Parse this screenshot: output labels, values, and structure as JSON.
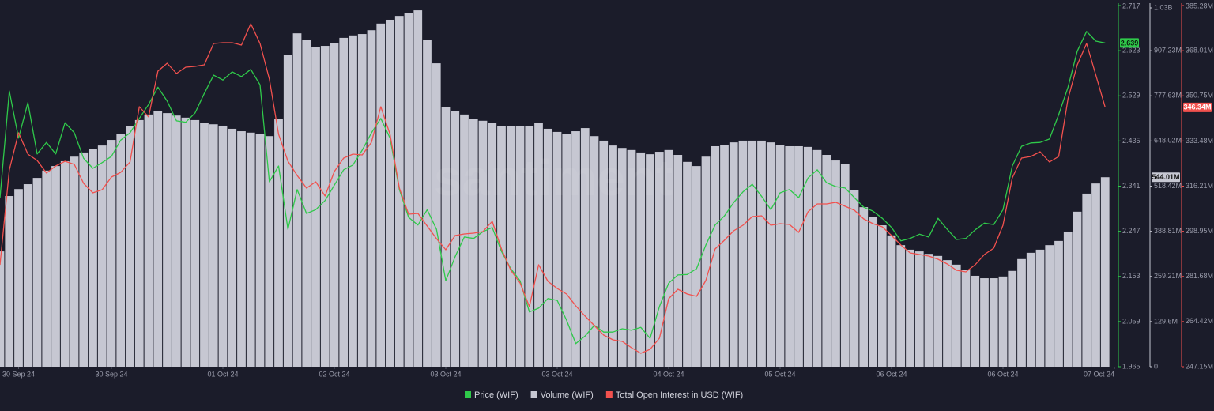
{
  "chart_data": {
    "type": "line",
    "watermark": "santiment",
    "x": [
      0,
      1,
      2,
      3,
      4,
      5,
      6,
      7,
      8,
      9,
      10,
      11,
      12,
      13,
      14,
      15,
      16,
      17,
      18,
      19,
      20,
      21,
      22,
      23,
      24,
      25,
      26,
      27,
      28,
      29,
      30,
      31,
      32,
      33,
      34,
      35,
      36,
      37,
      38,
      39,
      40,
      41,
      42,
      43,
      44,
      45,
      46,
      47,
      48,
      49,
      50,
      51,
      52,
      53,
      54,
      55,
      56,
      57,
      58,
      59,
      60,
      61,
      62,
      63,
      64,
      65,
      66,
      67,
      68,
      69,
      70,
      71,
      72,
      73,
      74,
      75,
      76,
      77,
      78,
      79,
      80,
      81,
      82,
      83,
      84,
      85,
      86,
      87,
      88,
      89,
      90,
      91,
      92,
      93,
      94,
      95,
      96,
      97,
      98,
      99,
      100,
      101,
      102,
      103,
      104,
      105,
      106,
      107,
      108,
      109,
      110,
      111,
      112,
      113,
      114,
      115,
      116,
      117,
      118,
      119
    ],
    "xlim": [
      0,
      120
    ],
    "xticks": [
      {
        "value": 2,
        "label": "30 Sep 24"
      },
      {
        "value": 12,
        "label": "30 Sep 24"
      },
      {
        "value": 24,
        "label": "01 Oct 24"
      },
      {
        "value": 36,
        "label": "02 Oct 24"
      },
      {
        "value": 48,
        "label": "03 Oct 24"
      },
      {
        "value": 60,
        "label": "03 Oct 24"
      },
      {
        "value": 72,
        "label": "04 Oct 24"
      },
      {
        "value": 84,
        "label": "05 Oct 24"
      },
      {
        "value": 96,
        "label": "06 Oct 24"
      },
      {
        "value": 108,
        "label": "06 Oct 24"
      },
      {
        "value": 120,
        "label": "07 Oct 24"
      }
    ],
    "ylim": [
      1.965,
      2.717
    ],
    "yticks": [
      2.717,
      2.623,
      2.529,
      2.435,
      2.341,
      2.247,
      2.153,
      2.059,
      1.965
    ],
    "y2lim": [
      0,
      1036.8
    ],
    "y2ticks": [
      {
        "value": 1030,
        "label": "1.03B"
      },
      {
        "value": 907.23,
        "label": "907.23M"
      },
      {
        "value": 777.63,
        "label": "777.63M"
      },
      {
        "value": 648.02,
        "label": "648.02M"
      },
      {
        "value": 518.42,
        "label": "518.42M"
      },
      {
        "value": 388.81,
        "label": "388.81M"
      },
      {
        "value": 259.21,
        "label": "259.21M"
      },
      {
        "value": 129.6,
        "label": "129.6M"
      },
      0
    ],
    "y3lim": [
      247.15,
      385.28
    ],
    "y3ticks": [
      {
        "value": 385.28,
        "label": "385.28M"
      },
      {
        "value": 368.01,
        "label": "368.01M"
      },
      {
        "value": 350.75,
        "label": "350.75M"
      },
      {
        "value": 333.48,
        "label": "333.48M"
      },
      {
        "value": 316.21,
        "label": "316.21M"
      },
      {
        "value": 298.95,
        "label": "298.95M"
      },
      {
        "value": 281.68,
        "label": "281.68M"
      },
      {
        "value": 264.42,
        "label": "264.42M"
      },
      {
        "value": 247.15,
        "label": "247.15M"
      }
    ],
    "series": [
      {
        "name": "Price (WIF)",
        "type": "line",
        "axis": "y",
        "color": "#2fc94a",
        "current": {
          "value": 2.639,
          "label": "2.639"
        },
        "values": [
          2.317,
          2.539,
          2.441,
          2.515,
          2.408,
          2.432,
          2.408,
          2.473,
          2.452,
          2.399,
          2.378,
          2.39,
          2.403,
          2.437,
          2.452,
          2.482,
          2.511,
          2.547,
          2.518,
          2.477,
          2.474,
          2.493,
          2.534,
          2.572,
          2.562,
          2.579,
          2.569,
          2.584,
          2.552,
          2.35,
          2.383,
          2.251,
          2.334,
          2.284,
          2.292,
          2.311,
          2.343,
          2.375,
          2.385,
          2.416,
          2.452,
          2.482,
          2.441,
          2.334,
          2.276,
          2.26,
          2.292,
          2.251,
          2.144,
          2.194,
          2.235,
          2.232,
          2.246,
          2.255,
          2.205,
          2.169,
          2.144,
          2.079,
          2.087,
          2.107,
          2.103,
          2.062,
          2.013,
          2.029,
          2.051,
          2.037,
          2.037,
          2.044,
          2.041,
          2.047,
          2.024,
          2.09,
          2.139,
          2.156,
          2.157,
          2.169,
          2.218,
          2.26,
          2.279,
          2.307,
          2.329,
          2.345,
          2.32,
          2.292,
          2.327,
          2.334,
          2.317,
          2.358,
          2.375,
          2.348,
          2.34,
          2.337,
          2.317,
          2.297,
          2.289,
          2.274,
          2.255,
          2.227,
          2.232,
          2.241,
          2.235,
          2.274,
          2.251,
          2.23,
          2.232,
          2.25,
          2.264,
          2.261,
          2.292,
          2.383,
          2.424,
          2.431,
          2.432,
          2.439,
          2.49,
          2.547,
          2.622,
          2.663,
          2.643,
          2.639
        ]
      },
      {
        "name": "Volume (WIF)",
        "type": "bar",
        "axis": "y2",
        "color": "#c6c7d2",
        "current": {
          "value": 544.01,
          "label": "544.01M"
        },
        "values": [
          331,
          490,
          510,
          524,
          542,
          563,
          576,
          590,
          603,
          615,
          624,
          635,
          651,
          667,
          690,
          708,
          724,
          735,
          728,
          721,
          715,
          708,
          701,
          696,
          692,
          683,
          676,
          672,
          667,
          662,
          712,
          894,
          957,
          939,
          917,
          921,
          928,
          944,
          951,
          955,
          966,
          985,
          996,
          1007,
          1016,
          1023,
          939,
          871,
          746,
          735,
          724,
          712,
          706,
          699,
          690,
          690,
          690,
          690,
          699,
          683,
          674,
          667,
          676,
          685,
          662,
          649,
          635,
          628,
          622,
          615,
          610,
          617,
          622,
          608,
          588,
          576,
          603,
          633,
          637,
          644,
          649,
          649,
          649,
          644,
          637,
          633,
          633,
          631,
          622,
          608,
          592,
          581,
          508,
          458,
          429,
          406,
          377,
          349,
          336,
          331,
          324,
          318,
          306,
          293,
          277,
          261,
          254,
          254,
          259,
          275,
          309,
          327,
          336,
          349,
          361,
          388,
          445,
          497,
          526,
          544.01
        ]
      },
      {
        "name": "Total Open Interest in USD (WIF)",
        "type": "line",
        "axis": "y3",
        "color": "#f2514e",
        "current": {
          "value": 346.34,
          "label": "346.34M"
        },
        "values": [
          286.14,
          322.41,
          336.62,
          328.46,
          326.04,
          321.2,
          323.92,
          325.74,
          324.53,
          317.27,
          313.65,
          314.85,
          319.69,
          321.5,
          325.43,
          346.59,
          342.66,
          360.19,
          363.21,
          359.28,
          361.7,
          362.01,
          362.61,
          370.77,
          371.07,
          371.07,
          370.17,
          378.33,
          370.77,
          357.17,
          336.01,
          325.74,
          320.29,
          315.46,
          317.88,
          312.44,
          321.81,
          326.94,
          328.46,
          328.15,
          332.99,
          346.59,
          336.01,
          315.46,
          305.48,
          305.79,
          300.95,
          296.11,
          291.88,
          297.32,
          297.93,
          298.23,
          298.83,
          302.76,
          292.19,
          284.02,
          279.19,
          270.12,
          286.14,
          279.79,
          277.07,
          274.96,
          270.42,
          266.49,
          262.87,
          259.24,
          257.43,
          256.82,
          254.4,
          252.29,
          253.8,
          258.03,
          273.14,
          276.77,
          274.96,
          274.05,
          280.1,
          292.19,
          295.51,
          299.14,
          301.25,
          304.58,
          304.88,
          301.25,
          301.86,
          301.56,
          298.53,
          306.39,
          309.41,
          309.41,
          310.02,
          308.51,
          307.0,
          303.67,
          301.86,
          300.65,
          297.32,
          293.7,
          290.67,
          290.07,
          289.47,
          288.26,
          286.44,
          284.02,
          283.42,
          286.14,
          290.07,
          292.49,
          301.25,
          319.39,
          326.94,
          327.55,
          329.36,
          325.43,
          327.55,
          349.61,
          362.61,
          370.77,
          358.68,
          346.34
        ]
      }
    ]
  }
}
